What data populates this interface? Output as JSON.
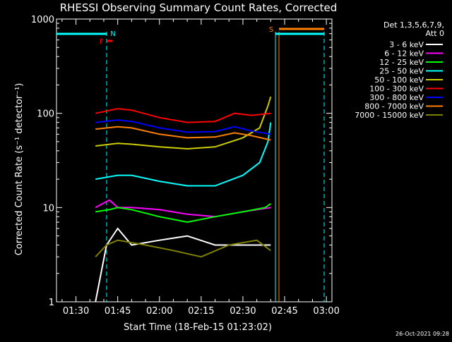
{
  "chart_data": {
    "type": "line",
    "title": "RHESSI Observing Summary Count Rates, Corrected",
    "xlabel": "Start Time (18-Feb-15 01:23:02)",
    "ylabel": "Corrected Count Rate (s⁻¹ detector⁻¹)",
    "y_scale": "log",
    "ylim": [
      1,
      1000
    ],
    "y_ticks": [
      {
        "value": 1,
        "label": "1"
      },
      {
        "value": 10,
        "label": "10"
      },
      {
        "value": 100,
        "label": "100"
      },
      {
        "value": 1000,
        "label": "1000"
      }
    ],
    "xlim": [
      "01:23",
      "03:02"
    ],
    "x_ticks": [
      "01:30",
      "01:45",
      "02:00",
      "02:15",
      "02:30",
      "02:45",
      "03:00"
    ],
    "legend_header": [
      "Det 1,3,5,6,7,9,",
      "Att 0"
    ],
    "legend_position": "right",
    "series": [
      {
        "name": "3 - 6 keV",
        "color": "#ffffff",
        "x": [
          "01:37",
          "01:39",
          "01:41",
          "01:45",
          "01:50",
          "02:00",
          "02:10",
          "02:20",
          "02:30",
          "02:40"
        ],
        "values": [
          1,
          2,
          4,
          6,
          4,
          4.5,
          5,
          4,
          4,
          4
        ]
      },
      {
        "name": "6 - 12 keV",
        "color": "#ff00ff",
        "x": [
          "01:37",
          "01:42",
          "01:45",
          "01:50",
          "02:00",
          "02:10",
          "02:20",
          "02:30",
          "02:40"
        ],
        "values": [
          10,
          12,
          10,
          10,
          9.5,
          8.5,
          8,
          9,
          10
        ]
      },
      {
        "name": "12 - 25 keV",
        "color": "#00ff00",
        "x": [
          "01:37",
          "01:42",
          "01:45",
          "01:50",
          "02:00",
          "02:10",
          "02:20",
          "02:30",
          "02:38",
          "02:40"
        ],
        "values": [
          9,
          9.5,
          10,
          9.5,
          8,
          7,
          8,
          9,
          10,
          11
        ]
      },
      {
        "name": "25 - 50 keV",
        "color": "#00ffff",
        "x": [
          "01:37",
          "01:45",
          "01:50",
          "02:00",
          "02:10",
          "02:20",
          "02:30",
          "02:36",
          "02:39",
          "02:40"
        ],
        "values": [
          20,
          22,
          22,
          19,
          17,
          17,
          22,
          30,
          50,
          80
        ]
      },
      {
        "name": "50 - 100 keV",
        "color": "#cccc00",
        "x": [
          "01:37",
          "01:45",
          "01:50",
          "02:00",
          "02:10",
          "02:20",
          "02:30",
          "02:36",
          "02:39",
          "02:40"
        ],
        "values": [
          45,
          48,
          47,
          44,
          42,
          44,
          55,
          70,
          120,
          150
        ]
      },
      {
        "name": "100 - 300 keV",
        "color": "#ff0000",
        "x": [
          "01:37",
          "01:45",
          "01:50",
          "02:00",
          "02:10",
          "02:20",
          "02:27",
          "02:33",
          "02:40"
        ],
        "values": [
          100,
          112,
          108,
          90,
          80,
          82,
          100,
          95,
          100
        ]
      },
      {
        "name": "300 - 800 keV",
        "color": "#0000ff",
        "x": [
          "01:37",
          "01:45",
          "01:50",
          "02:00",
          "02:10",
          "02:20",
          "02:27",
          "02:33",
          "02:40"
        ],
        "values": [
          80,
          85,
          82,
          70,
          63,
          64,
          72,
          65,
          60
        ]
      },
      {
        "name": "800 - 7000 keV",
        "color": "#ff8000",
        "x": [
          "01:37",
          "01:45",
          "01:50",
          "02:00",
          "02:10",
          "02:20",
          "02:27",
          "02:33",
          "02:40"
        ],
        "values": [
          68,
          72,
          70,
          60,
          55,
          56,
          62,
          58,
          52
        ]
      },
      {
        "name": "7000 - 15000 keV",
        "color": "#808000",
        "x": [
          "01:37",
          "01:41",
          "01:45",
          "01:55",
          "02:05",
          "02:15",
          "02:25",
          "02:35",
          "02:40"
        ],
        "values": [
          3,
          4,
          4.5,
          4,
          3.5,
          3,
          4,
          4.5,
          3.5
        ]
      }
    ],
    "annotations": [
      {
        "label": "N",
        "color": "#00ffff"
      },
      {
        "label": "F",
        "color": "#ff0000"
      },
      {
        "label": "S",
        "color": "#ff8000"
      }
    ],
    "timestamp": "26-Oct-2021 09:28"
  }
}
